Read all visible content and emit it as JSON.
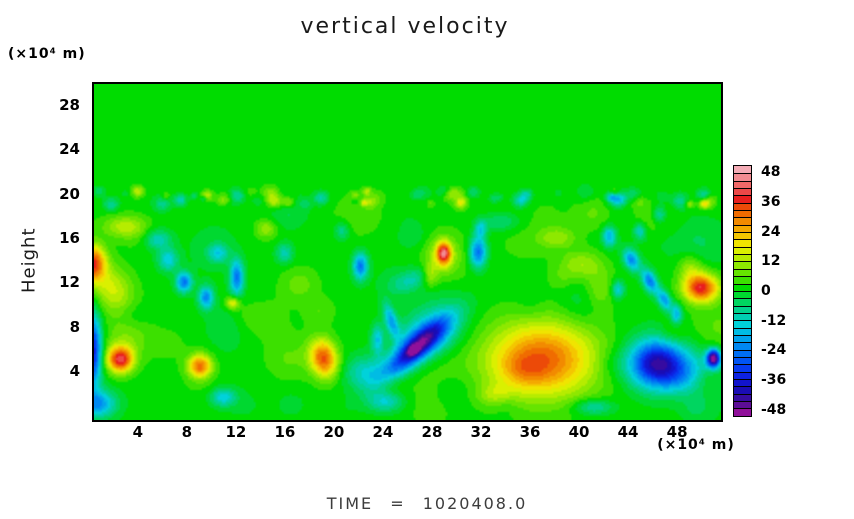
{
  "chart_data": {
    "type": "filled_contour",
    "title": "vertical velocity",
    "footer_time_label": "TIME = 1020408.0",
    "x_axis": {
      "unit_label": "(×10⁴ m)",
      "ticks": [
        4,
        8,
        12,
        16,
        20,
        24,
        28,
        32,
        36,
        40,
        44,
        48
      ],
      "range": [
        0.26,
        51.42
      ]
    },
    "y_axis": {
      "label": "Height",
      "unit_label": "(×10⁴ m)",
      "ticks": [
        4,
        8,
        12,
        16,
        20,
        24,
        28
      ],
      "range": [
        -0.26,
        30.08
      ]
    },
    "colorbar": {
      "vmin": -51,
      "vmax": 51,
      "step": 3,
      "tick_labels": [
        48,
        36,
        24,
        12,
        0,
        -12,
        -24,
        -36,
        -48
      ],
      "colors": [
        "#90109a",
        "#5c0d96",
        "#360ba0",
        "#1a0cb4",
        "#1214cc",
        "#0d22e2",
        "#063af0",
        "#0054f4",
        "#006ef4",
        "#0088f2",
        "#00a2ec",
        "#00bce4",
        "#00d2da",
        "#00cfb2",
        "#00d28c",
        "#00d560",
        "#00d830",
        "#00dc00",
        "#3ce000",
        "#66e400",
        "#8ee800",
        "#b6ec00",
        "#daf000",
        "#f0e400",
        "#f4c600",
        "#f4a800",
        "#f28a00",
        "#f06c00",
        "#ec4a08",
        "#e81e1e",
        "#ec4848",
        "#f06868",
        "#f28c92",
        "#f4acb6"
      ]
    },
    "field": {
      "base_value": 1.5,
      "features_format": [
        "x",
        "y",
        "amp",
        "rx",
        "ry",
        "rot_deg"
      ],
      "features": [
        [
          0.2,
          13.9,
          34,
          1.0,
          1.6,
          0
        ],
        [
          1.8,
          11.5,
          14,
          1.6,
          2.2,
          20
        ],
        [
          2.4,
          5.2,
          38,
          1.05,
          1.15,
          0
        ],
        [
          0.1,
          6.0,
          -40,
          0.75,
          3.2,
          0
        ],
        [
          0.6,
          1.2,
          -22,
          1.4,
          1.2,
          0
        ],
        [
          11.6,
          10.3,
          18,
          0.55,
          0.55,
          0
        ],
        [
          7.6,
          12.2,
          -26,
          0.65,
          0.9,
          0
        ],
        [
          9.4,
          10.8,
          -24,
          0.6,
          1.0,
          0
        ],
        [
          6.3,
          14.2,
          -16,
          0.8,
          1.0,
          0
        ],
        [
          11.9,
          12.6,
          -26,
          0.55,
          1.6,
          0
        ],
        [
          10.4,
          14.8,
          -14,
          0.8,
          0.8,
          0
        ],
        [
          8.9,
          4.6,
          30,
          0.95,
          1.05,
          0
        ],
        [
          19.0,
          5.3,
          32,
          1.1,
          1.7,
          10
        ],
        [
          10.8,
          1.8,
          -16,
          1.0,
          0.8,
          0
        ],
        [
          2.8,
          17.2,
          12,
          1.8,
          1.0,
          0
        ],
        [
          5.5,
          16.0,
          -10,
          1.0,
          0.8,
          0
        ],
        [
          14.3,
          17.0,
          10,
          0.8,
          0.8,
          0
        ],
        [
          15.8,
          14.8,
          -12,
          0.7,
          0.9,
          0
        ],
        [
          22.0,
          13.6,
          -26,
          0.6,
          1.2,
          0
        ],
        [
          26.2,
          12.4,
          -10,
          1.6,
          0.9,
          30
        ],
        [
          27.7,
          12.8,
          10,
          0.6,
          1.0,
          0
        ],
        [
          28.8,
          14.8,
          34,
          0.55,
          0.95,
          0
        ],
        [
          28.6,
          14.6,
          10,
          1.3,
          1.8,
          0
        ],
        [
          31.6,
          14.9,
          -28,
          0.7,
          1.4,
          0
        ],
        [
          31.8,
          17.0,
          -14,
          0.5,
          0.8,
          0
        ],
        [
          33.5,
          17.6,
          -8,
          1.5,
          0.8,
          0
        ],
        [
          26.5,
          6.2,
          -40,
          3.6,
          1.05,
          45
        ],
        [
          26.3,
          6.0,
          -14,
          0.55,
          0.45,
          45
        ],
        [
          24.5,
          8.7,
          -20,
          0.5,
          1.6,
          15
        ],
        [
          23.4,
          7.0,
          -16,
          0.5,
          1.3,
          0
        ],
        [
          27.7,
          7.5,
          -16,
          2.8,
          2.2,
          45
        ],
        [
          22.5,
          4.0,
          -14,
          1.8,
          1.5,
          0
        ],
        [
          24.0,
          1.4,
          -14,
          1.4,
          0.9,
          0
        ],
        [
          33.0,
          2.0,
          8,
          1.5,
          1.0,
          0
        ],
        [
          36.8,
          5.2,
          31,
          4.4,
          3.4,
          0
        ],
        [
          35.3,
          4.3,
          6,
          1.8,
          1.4,
          0
        ],
        [
          40.0,
          13.8,
          10,
          1.6,
          1.2,
          0
        ],
        [
          41.5,
          11.5,
          8,
          1.2,
          2.0,
          0
        ],
        [
          38.0,
          16.2,
          8,
          1.5,
          0.9,
          0
        ],
        [
          49.8,
          11.7,
          36,
          1.4,
          1.25,
          0
        ],
        [
          46.1,
          4.8,
          -38,
          2.3,
          2.1,
          0
        ],
        [
          48.5,
          4.0,
          -16,
          2.6,
          2.0,
          0
        ],
        [
          50.8,
          5.3,
          -52,
          0.55,
          0.8,
          0
        ],
        [
          44.1,
          14.2,
          -24,
          0.6,
          1.0,
          20
        ],
        [
          45.6,
          12.3,
          -26,
          0.55,
          1.1,
          20
        ],
        [
          46.8,
          10.6,
          -22,
          0.5,
          1.0,
          20
        ],
        [
          47.8,
          9.3,
          -18,
          0.45,
          0.9,
          0
        ],
        [
          43.0,
          11.5,
          -16,
          0.5,
          0.8,
          0
        ],
        [
          42.3,
          16.3,
          -20,
          0.55,
          0.9,
          0
        ],
        [
          44.8,
          16.8,
          -14,
          0.5,
          0.7,
          0
        ],
        [
          46.4,
          18.3,
          -14,
          0.6,
          0.8,
          0
        ],
        [
          48.9,
          13.5,
          10,
          1.0,
          1.2,
          0
        ],
        [
          41.0,
          0.9,
          -12,
          1.6,
          0.7,
          0
        ],
        [
          20.5,
          16.8,
          -10,
          0.6,
          0.8,
          0
        ],
        [
          17.0,
          12.0,
          6,
          1.5,
          1.5,
          0
        ]
      ],
      "noise_bands": [
        {
          "seed": 7,
          "count": 70,
          "x_range": [
            0.3,
            51.3
          ],
          "y_range": [
            19.2,
            20.4
          ],
          "amp_range": [
            -14,
            14
          ],
          "r_range": [
            0.25,
            0.7
          ]
        },
        {
          "seed": 13,
          "count": 60,
          "x_range": [
            0.3,
            51.3
          ],
          "y_range": [
            0.5,
            19.0
          ],
          "amp_range": [
            -5,
            5
          ],
          "r_range": [
            1.0,
            2.6
          ]
        }
      ]
    }
  }
}
